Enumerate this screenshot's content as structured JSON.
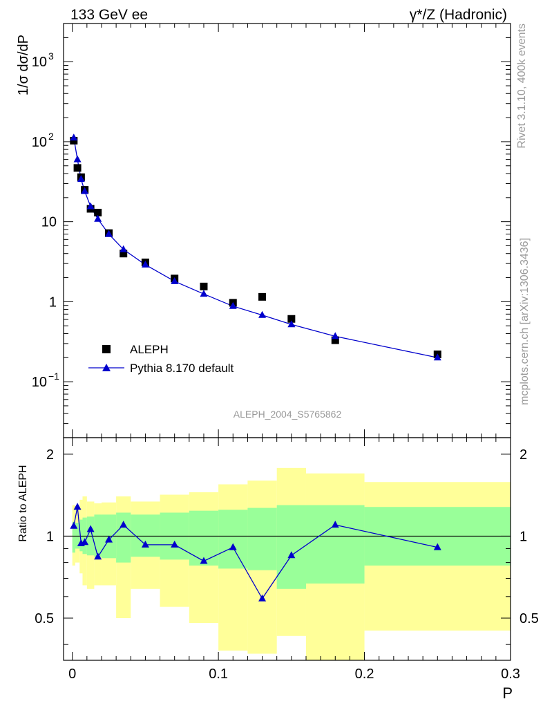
{
  "header": {
    "left": "133 GeV ee",
    "right": "γ*/Z (Hadronic)"
  },
  "side_labels": {
    "rivet": "Rivet 3.1.10,  400k events",
    "mcplots": "mcplots.cern.ch [arXiv:1306.3436]"
  },
  "colors": {
    "data": "#000000",
    "mc": "#0000cc",
    "band_inner": "#99ff99",
    "band_outer": "#ffff99"
  },
  "chart_data": [
    {
      "type": "scatter",
      "name": "main",
      "title": "133 GeV ee",
      "ylabel": "1/σ  dσ/dP",
      "xlabel": "P",
      "analysis_label": "ALEPH_2004_S5765862",
      "xlim": [
        -0.006,
        0.3
      ],
      "ylim": [
        0.02,
        3000
      ],
      "yscale": "log",
      "y_ticks": [
        {
          "value": 0.1,
          "label": "10",
          "exp": "−1"
        },
        {
          "value": 1,
          "label": "1",
          "exp": ""
        },
        {
          "value": 10,
          "label": "10",
          "exp": ""
        },
        {
          "value": 100,
          "label": "10",
          "exp": "2"
        },
        {
          "value": 1000,
          "label": "10",
          "exp": "3"
        }
      ],
      "legend": {
        "position": "center-left",
        "entries": [
          "ALEPH",
          "Pythia 8.170 default"
        ]
      },
      "series": [
        {
          "name": "ALEPH",
          "marker": "square",
          "x": [
            0.001,
            0.0035,
            0.006,
            0.0085,
            0.0125,
            0.0175,
            0.025,
            0.035,
            0.05,
            0.07,
            0.09,
            0.11,
            0.13,
            0.15,
            0.18,
            0.25
          ],
          "y": [
            103,
            47,
            36,
            25,
            14.5,
            13,
            7.2,
            4.0,
            3.1,
            1.95,
            1.55,
            0.97,
            1.15,
            0.61,
            0.33,
            0.22
          ]
        },
        {
          "name": "Pythia 8.170 default",
          "marker": "triangle",
          "x": [
            0.001,
            0.0035,
            0.006,
            0.0085,
            0.0125,
            0.0175,
            0.025,
            0.035,
            0.05,
            0.07,
            0.09,
            0.11,
            0.13,
            0.15,
            0.18,
            0.25
          ],
          "y": [
            112,
            60,
            34,
            24,
            15.5,
            10.8,
            7.0,
            4.5,
            2.9,
            1.8,
            1.25,
            0.88,
            0.68,
            0.52,
            0.37,
            0.2
          ]
        }
      ]
    },
    {
      "type": "line",
      "name": "ratio",
      "ylabel": "Ratio to ALEPH",
      "xlabel": "P",
      "xlim": [
        -0.006,
        0.3
      ],
      "ylim": [
        0.35,
        2.3
      ],
      "yscale": "log",
      "x_ticks": [
        0,
        0.1,
        0.2,
        0.3
      ],
      "x_tick_labels": [
        "0",
        "0.1",
        "0.2",
        "0.3"
      ],
      "y_ticks": [
        0.5,
        1,
        2
      ],
      "y_tick_labels": [
        "0.5",
        "1",
        "2"
      ],
      "reference_line": 1,
      "bands": {
        "edges": [
          0,
          0.002,
          0.005,
          0.007,
          0.01,
          0.015,
          0.02,
          0.03,
          0.04,
          0.06,
          0.08,
          0.1,
          0.12,
          0.14,
          0.16,
          0.2,
          0.3
        ],
        "inner_low": [
          0.87,
          0.9,
          0.88,
          0.86,
          0.85,
          0.84,
          0.83,
          0.8,
          0.84,
          0.82,
          0.78,
          0.76,
          0.75,
          0.64,
          0.67,
          0.78
        ],
        "inner_high": [
          1.13,
          1.12,
          1.15,
          1.17,
          1.18,
          1.2,
          1.2,
          1.22,
          1.2,
          1.22,
          1.24,
          1.25,
          1.27,
          1.3,
          1.3,
          1.28
        ],
        "outer_low": [
          0.78,
          0.8,
          0.73,
          0.66,
          0.64,
          0.66,
          0.66,
          0.5,
          0.64,
          0.55,
          0.48,
          0.38,
          0.37,
          0.43,
          0.35,
          0.45
        ],
        "outer_high": [
          1.3,
          1.28,
          1.36,
          1.4,
          1.34,
          1.32,
          1.33,
          1.4,
          1.34,
          1.42,
          1.45,
          1.55,
          1.6,
          1.78,
          1.7,
          1.58
        ]
      },
      "series": [
        {
          "name": "Pythia 8.170 default / ALEPH",
          "x": [
            0.001,
            0.0035,
            0.006,
            0.0085,
            0.0125,
            0.0175,
            0.025,
            0.035,
            0.05,
            0.07,
            0.09,
            0.11,
            0.13,
            0.15,
            0.18,
            0.25
          ],
          "y": [
            1.09,
            1.28,
            0.94,
            0.95,
            1.06,
            0.84,
            0.97,
            1.1,
            0.93,
            0.93,
            0.81,
            0.91,
            0.59,
            0.85,
            1.1,
            0.91
          ]
        }
      ]
    }
  ]
}
